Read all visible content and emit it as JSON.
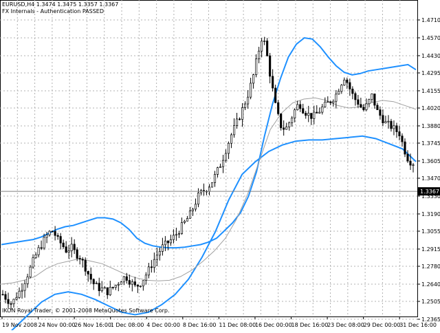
{
  "header": {
    "symbol_line": "EURUSD,H4  1.3474  1.3475  1.3357  1.3367",
    "status_line": "FX Internals - Authentication PASSED"
  },
  "footer": {
    "copyright": "IKON Royal Trader, © 2001-2008 MetaQuotes Software Corp."
  },
  "colors": {
    "background": "#ffffff",
    "grid": "#b0b0b0",
    "candle_up": "#ffffff",
    "candle_down": "#000000",
    "bollinger": "#1e90ff",
    "middle_band": "#a0a0a0",
    "price_line": "#808080",
    "current_tag_bg": "#ffffff"
  },
  "chart_data": {
    "type": "candlestick",
    "symbol": "EURUSD",
    "timeframe": "H4",
    "grid": true,
    "ylim": [
      1.2365,
      1.471
    ],
    "y_ticks": [
      "1.4710",
      "1.4570",
      "1.4430",
      "1.4295",
      "1.4155",
      "1.4020",
      "1.3880",
      "1.3745",
      "1.3605",
      "1.3470",
      "1.3330",
      "1.3190",
      "1.3055",
      "1.2915",
      "1.2780",
      "1.2640",
      "1.2505",
      "1.2365"
    ],
    "x_labels": [
      "19 Nov 2008",
      "24 Nov 00:00",
      "26 Nov 16:00",
      "1 Dec 08:00",
      "4 Dec 00:00",
      "8 Dec 16:00",
      "11 Dec 08:00",
      "16 Dec 00:00",
      "18 Dec 16:00",
      "23 Dec 08:00",
      "29 Dec 00:00",
      "31 Dec 16:00"
    ],
    "current_price": "1.3367",
    "close_path": [
      1.256,
      1.252,
      1.2485,
      1.255,
      1.26,
      1.268,
      1.276,
      1.285,
      1.292,
      1.298,
      1.304,
      1.306,
      1.299,
      1.295,
      1.29,
      1.293,
      1.288,
      1.285,
      1.278,
      1.27,
      1.264,
      1.261,
      1.26,
      1.258,
      1.261,
      1.264,
      1.268,
      1.27,
      1.266,
      1.262,
      1.264,
      1.269,
      1.275,
      1.282,
      1.288,
      1.293,
      1.296,
      1.299,
      1.303,
      1.308,
      1.313,
      1.318,
      1.326,
      1.334,
      1.337,
      1.34,
      1.345,
      1.352,
      1.36,
      1.37,
      1.38,
      1.388,
      1.396,
      1.405,
      1.415,
      1.428,
      1.445,
      1.46,
      1.442,
      1.42,
      1.4,
      1.388,
      1.385,
      1.392,
      1.4,
      1.406,
      1.4,
      1.397,
      1.395,
      1.398,
      1.402,
      1.405,
      1.408,
      1.412,
      1.42,
      1.427,
      1.418,
      1.41,
      1.406,
      1.4,
      1.405,
      1.412,
      1.4,
      1.395,
      1.39,
      1.388,
      1.385,
      1.382,
      1.37,
      1.361,
      1.359
    ],
    "upper_band": [
      1.295,
      1.296,
      1.297,
      1.298,
      1.299,
      1.301,
      1.304,
      1.307,
      1.309,
      1.31,
      1.312,
      1.314,
      1.316,
      1.316,
      1.315,
      1.312,
      1.307,
      1.3,
      1.296,
      1.294,
      1.293,
      1.2925,
      1.2925,
      1.293,
      1.294,
      1.295,
      1.297,
      1.3,
      1.306,
      1.312,
      1.32,
      1.333,
      1.352,
      1.38,
      1.405,
      1.425,
      1.442,
      1.452,
      1.457,
      1.456,
      1.45,
      1.442,
      1.435,
      1.43,
      1.428,
      1.429,
      1.431,
      1.432,
      1.433,
      1.434,
      1.435,
      1.436,
      1.432
    ],
    "middle_band": [
      1.264,
      1.265,
      1.267,
      1.27,
      1.276,
      1.28,
      1.282,
      1.284,
      1.282,
      1.28,
      1.276,
      1.272,
      1.269,
      1.267,
      1.2665,
      1.267,
      1.27,
      1.275,
      1.282,
      1.29,
      1.3,
      1.315,
      1.335,
      1.36,
      1.385,
      1.398,
      1.406,
      1.409,
      1.41,
      1.408,
      1.404,
      1.402,
      1.403,
      1.406,
      1.408,
      1.407,
      1.404,
      1.401
    ],
    "lower_band": [
      1.22,
      1.23,
      1.24,
      1.25,
      1.256,
      1.258,
      1.256,
      1.252,
      1.247,
      1.242,
      1.24,
      1.242,
      1.248,
      1.256,
      1.268,
      1.285,
      1.305,
      1.33,
      1.35,
      1.36,
      1.368,
      1.373,
      1.376,
      1.377,
      1.377,
      1.378,
      1.379,
      1.38,
      1.378,
      1.374,
      1.37,
      1.36
    ]
  }
}
